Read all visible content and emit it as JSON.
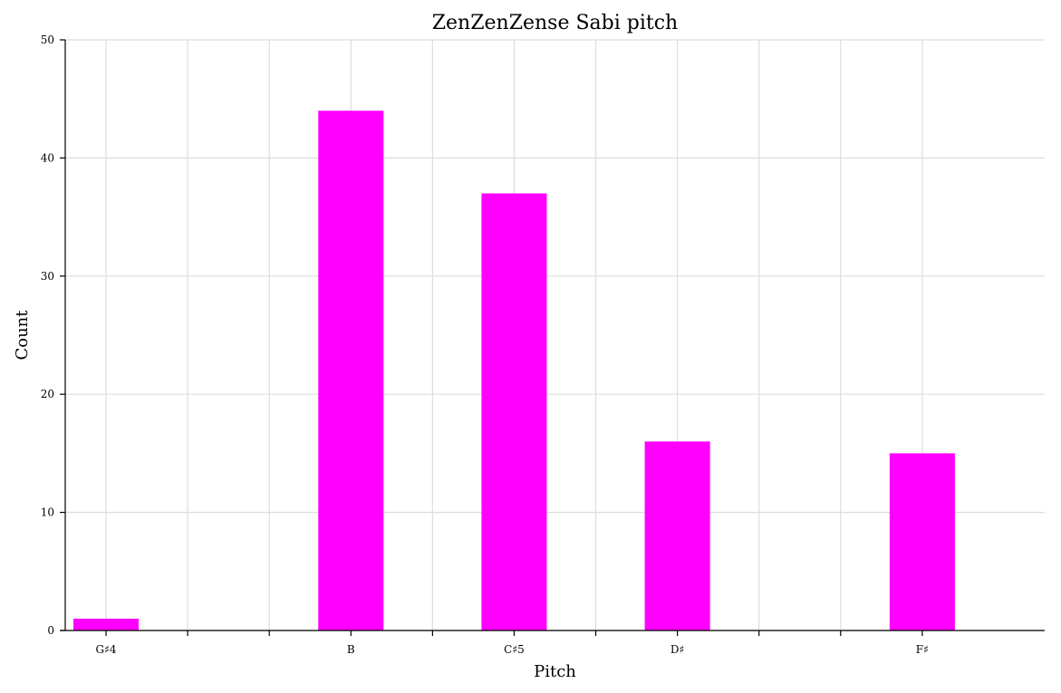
{
  "chart_data": {
    "type": "bar",
    "title": "ZenZenZense Sabi pitch",
    "xlabel": "Pitch",
    "ylabel": "Count",
    "x_slots": 12,
    "bars": [
      {
        "pitch_index": 0,
        "value": 1
      },
      {
        "pitch_index": 3,
        "value": 44
      },
      {
        "pitch_index": 5,
        "value": 37
      },
      {
        "pitch_index": 7,
        "value": 16
      },
      {
        "pitch_index": 10,
        "value": 15
      }
    ],
    "x_tick_labels": [
      {
        "pitch_index": 0.5,
        "label": "G♯4"
      },
      {
        "pitch_index": 1.5,
        "label": ""
      },
      {
        "pitch_index": 2.5,
        "label": ""
      },
      {
        "pitch_index": 3.5,
        "label": "B"
      },
      {
        "pitch_index": 4.5,
        "label": ""
      },
      {
        "pitch_index": 5.5,
        "label": "C♯5"
      },
      {
        "pitch_index": 6.5,
        "label": ""
      },
      {
        "pitch_index": 7.5,
        "label": "D♯"
      },
      {
        "pitch_index": 8.5,
        "label": ""
      },
      {
        "pitch_index": 9.5,
        "label": ""
      },
      {
        "pitch_index": 10.5,
        "label": "F♯"
      }
    ],
    "y_ticks": [
      0,
      10,
      20,
      30,
      40,
      50
    ],
    "ylim": [
      0,
      50
    ],
    "grid": true,
    "bar_color": "#ff00ff"
  }
}
